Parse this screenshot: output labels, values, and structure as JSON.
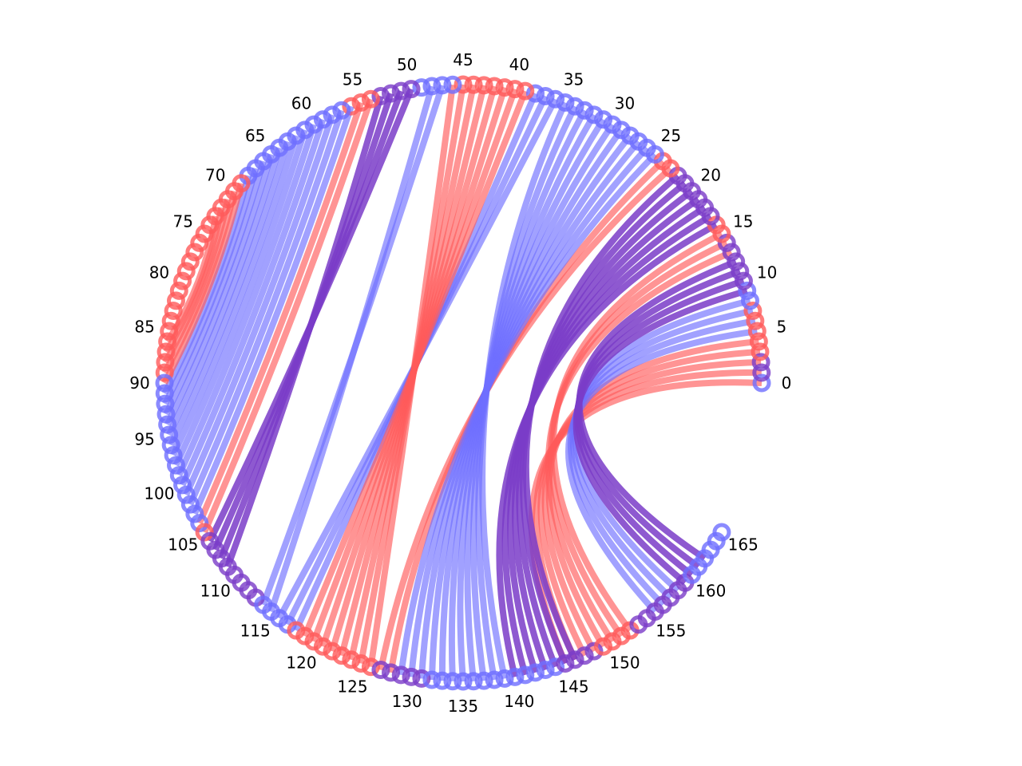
{
  "chart_data": {
    "type": "chord",
    "node_count": 166,
    "node_colors": [
      "b",
      "p",
      "p",
      "r",
      "r",
      "r",
      "r",
      "r",
      "b",
      "b",
      "p",
      "p",
      "p",
      "p",
      "p",
      "r",
      "r",
      "p",
      "p",
      "p",
      "p",
      "p",
      "p",
      "r",
      "r",
      "b",
      "b",
      "b",
      "b",
      "b",
      "b",
      "b",
      "b",
      "b",
      "b",
      "b",
      "b",
      "b",
      "b",
      "r",
      "r",
      "r",
      "r",
      "r",
      "r",
      "r",
      "b",
      "b",
      "b",
      "b",
      "p",
      "p",
      "p",
      "p",
      "r",
      "r",
      "r",
      "b",
      "b",
      "b",
      "b",
      "b",
      "b",
      "b",
      "b",
      "b",
      "b",
      "b",
      "b",
      "r",
      "r",
      "r",
      "r",
      "r",
      "r",
      "r",
      "r",
      "r",
      "r",
      "r",
      "r",
      "r",
      "r",
      "r",
      "r",
      "r",
      "r",
      "r",
      "r",
      "r",
      "b",
      "b",
      "b",
      "b",
      "b",
      "b",
      "b",
      "b",
      "b",
      "b",
      "b",
      "b",
      "b",
      "b",
      "b",
      "r",
      "p",
      "p",
      "p",
      "p",
      "p",
      "p",
      "p",
      "p",
      "b",
      "b",
      "b",
      "b",
      "r",
      "r",
      "r",
      "r",
      "r",
      "r",
      "r",
      "r",
      "r",
      "p",
      "p",
      "p",
      "p",
      "p",
      "b",
      "b",
      "b",
      "b",
      "b",
      "b",
      "b",
      "b",
      "b",
      "b",
      "b",
      "b",
      "b",
      "p",
      "p",
      "p",
      "p",
      "r",
      "r",
      "r",
      "r",
      "p",
      "p",
      "p",
      "p",
      "p",
      "p",
      "p",
      "b",
      "b",
      "b",
      "b",
      "b",
      "b",
      "b",
      "r"
    ],
    "chords": [
      {
        "color": "r",
        "pairs": [
          [
            0,
            145
          ],
          [
            1,
            146
          ],
          [
            2,
            147
          ],
          [
            3,
            148
          ],
          [
            4,
            149
          ]
        ]
      },
      {
        "color": "b",
        "pairs": [
          [
            5,
            155
          ],
          [
            6,
            156
          ],
          [
            7,
            157
          ],
          [
            8,
            158
          ]
        ]
      },
      {
        "color": "p",
        "pairs": [
          [
            9,
            159
          ],
          [
            10,
            160
          ],
          [
            11,
            161
          ],
          [
            12,
            162
          ]
        ]
      },
      {
        "color": "r",
        "pairs": [
          [
            13,
            150
          ],
          [
            14,
            151
          ],
          [
            15,
            152
          ]
        ]
      },
      {
        "color": "p",
        "pairs": [
          [
            16,
            140
          ],
          [
            17,
            141
          ],
          [
            18,
            142
          ],
          [
            19,
            143
          ],
          [
            20,
            144
          ],
          [
            21,
            145
          ],
          [
            22,
            146
          ]
        ]
      },
      {
        "color": "r",
        "pairs": [
          [
            23,
            127
          ],
          [
            24,
            128
          ]
        ]
      },
      {
        "color": "b",
        "pairs": [
          [
            25,
            129
          ],
          [
            26,
            130
          ],
          [
            27,
            131
          ],
          [
            28,
            132
          ],
          [
            29,
            133
          ],
          [
            30,
            134
          ],
          [
            31,
            135
          ],
          [
            32,
            136
          ],
          [
            33,
            137
          ],
          [
            34,
            138
          ],
          [
            35,
            139
          ]
        ]
      },
      {
        "color": "b",
        "pairs": [
          [
            36,
            116
          ],
          [
            37,
            117
          ],
          [
            38,
            118
          ]
        ]
      },
      {
        "color": "r",
        "pairs": [
          [
            39,
            119
          ],
          [
            40,
            120
          ],
          [
            41,
            121
          ],
          [
            42,
            122
          ],
          [
            43,
            123
          ],
          [
            44,
            124
          ],
          [
            45,
            125
          ],
          [
            46,
            126
          ]
        ]
      },
      {
        "color": "b",
        "pairs": [
          [
            47,
            114
          ],
          [
            48,
            115
          ]
        ]
      },
      {
        "color": "p",
        "pairs": [
          [
            50,
            106
          ],
          [
            51,
            107
          ],
          [
            52,
            108
          ],
          [
            53,
            109
          ]
        ]
      },
      {
        "color": "r",
        "pairs": [
          [
            54,
            105
          ],
          [
            55,
            104
          ]
        ]
      },
      {
        "color": "b",
        "pairs": [
          [
            56,
            103
          ],
          [
            57,
            102
          ],
          [
            58,
            101
          ],
          [
            59,
            100
          ],
          [
            60,
            99
          ],
          [
            61,
            98
          ],
          [
            62,
            97
          ],
          [
            63,
            96
          ],
          [
            64,
            95
          ],
          [
            65,
            94
          ],
          [
            66,
            93
          ],
          [
            67,
            92
          ],
          [
            68,
            91
          ]
        ]
      },
      {
        "color": "r",
        "pairs": [
          [
            69,
            90
          ],
          [
            70,
            89
          ],
          [
            71,
            88
          ],
          [
            72,
            87
          ],
          [
            73,
            86
          ]
        ]
      }
    ],
    "tick_labels": [
      "0",
      "5",
      "10",
      "15",
      "20",
      "25",
      "30",
      "35",
      "40",
      "45",
      "50",
      "55",
      "60",
      "65",
      "70",
      "75",
      "80",
      "85",
      "90",
      "95",
      "100",
      "105",
      "110",
      "115",
      "120",
      "125",
      "130",
      "135",
      "140",
      "145",
      "150",
      "155",
      "160",
      "165"
    ],
    "colors": {
      "r": "#ff5a5a",
      "b": "#6e6eff",
      "p": "#7a3cc8"
    },
    "grid": false
  }
}
